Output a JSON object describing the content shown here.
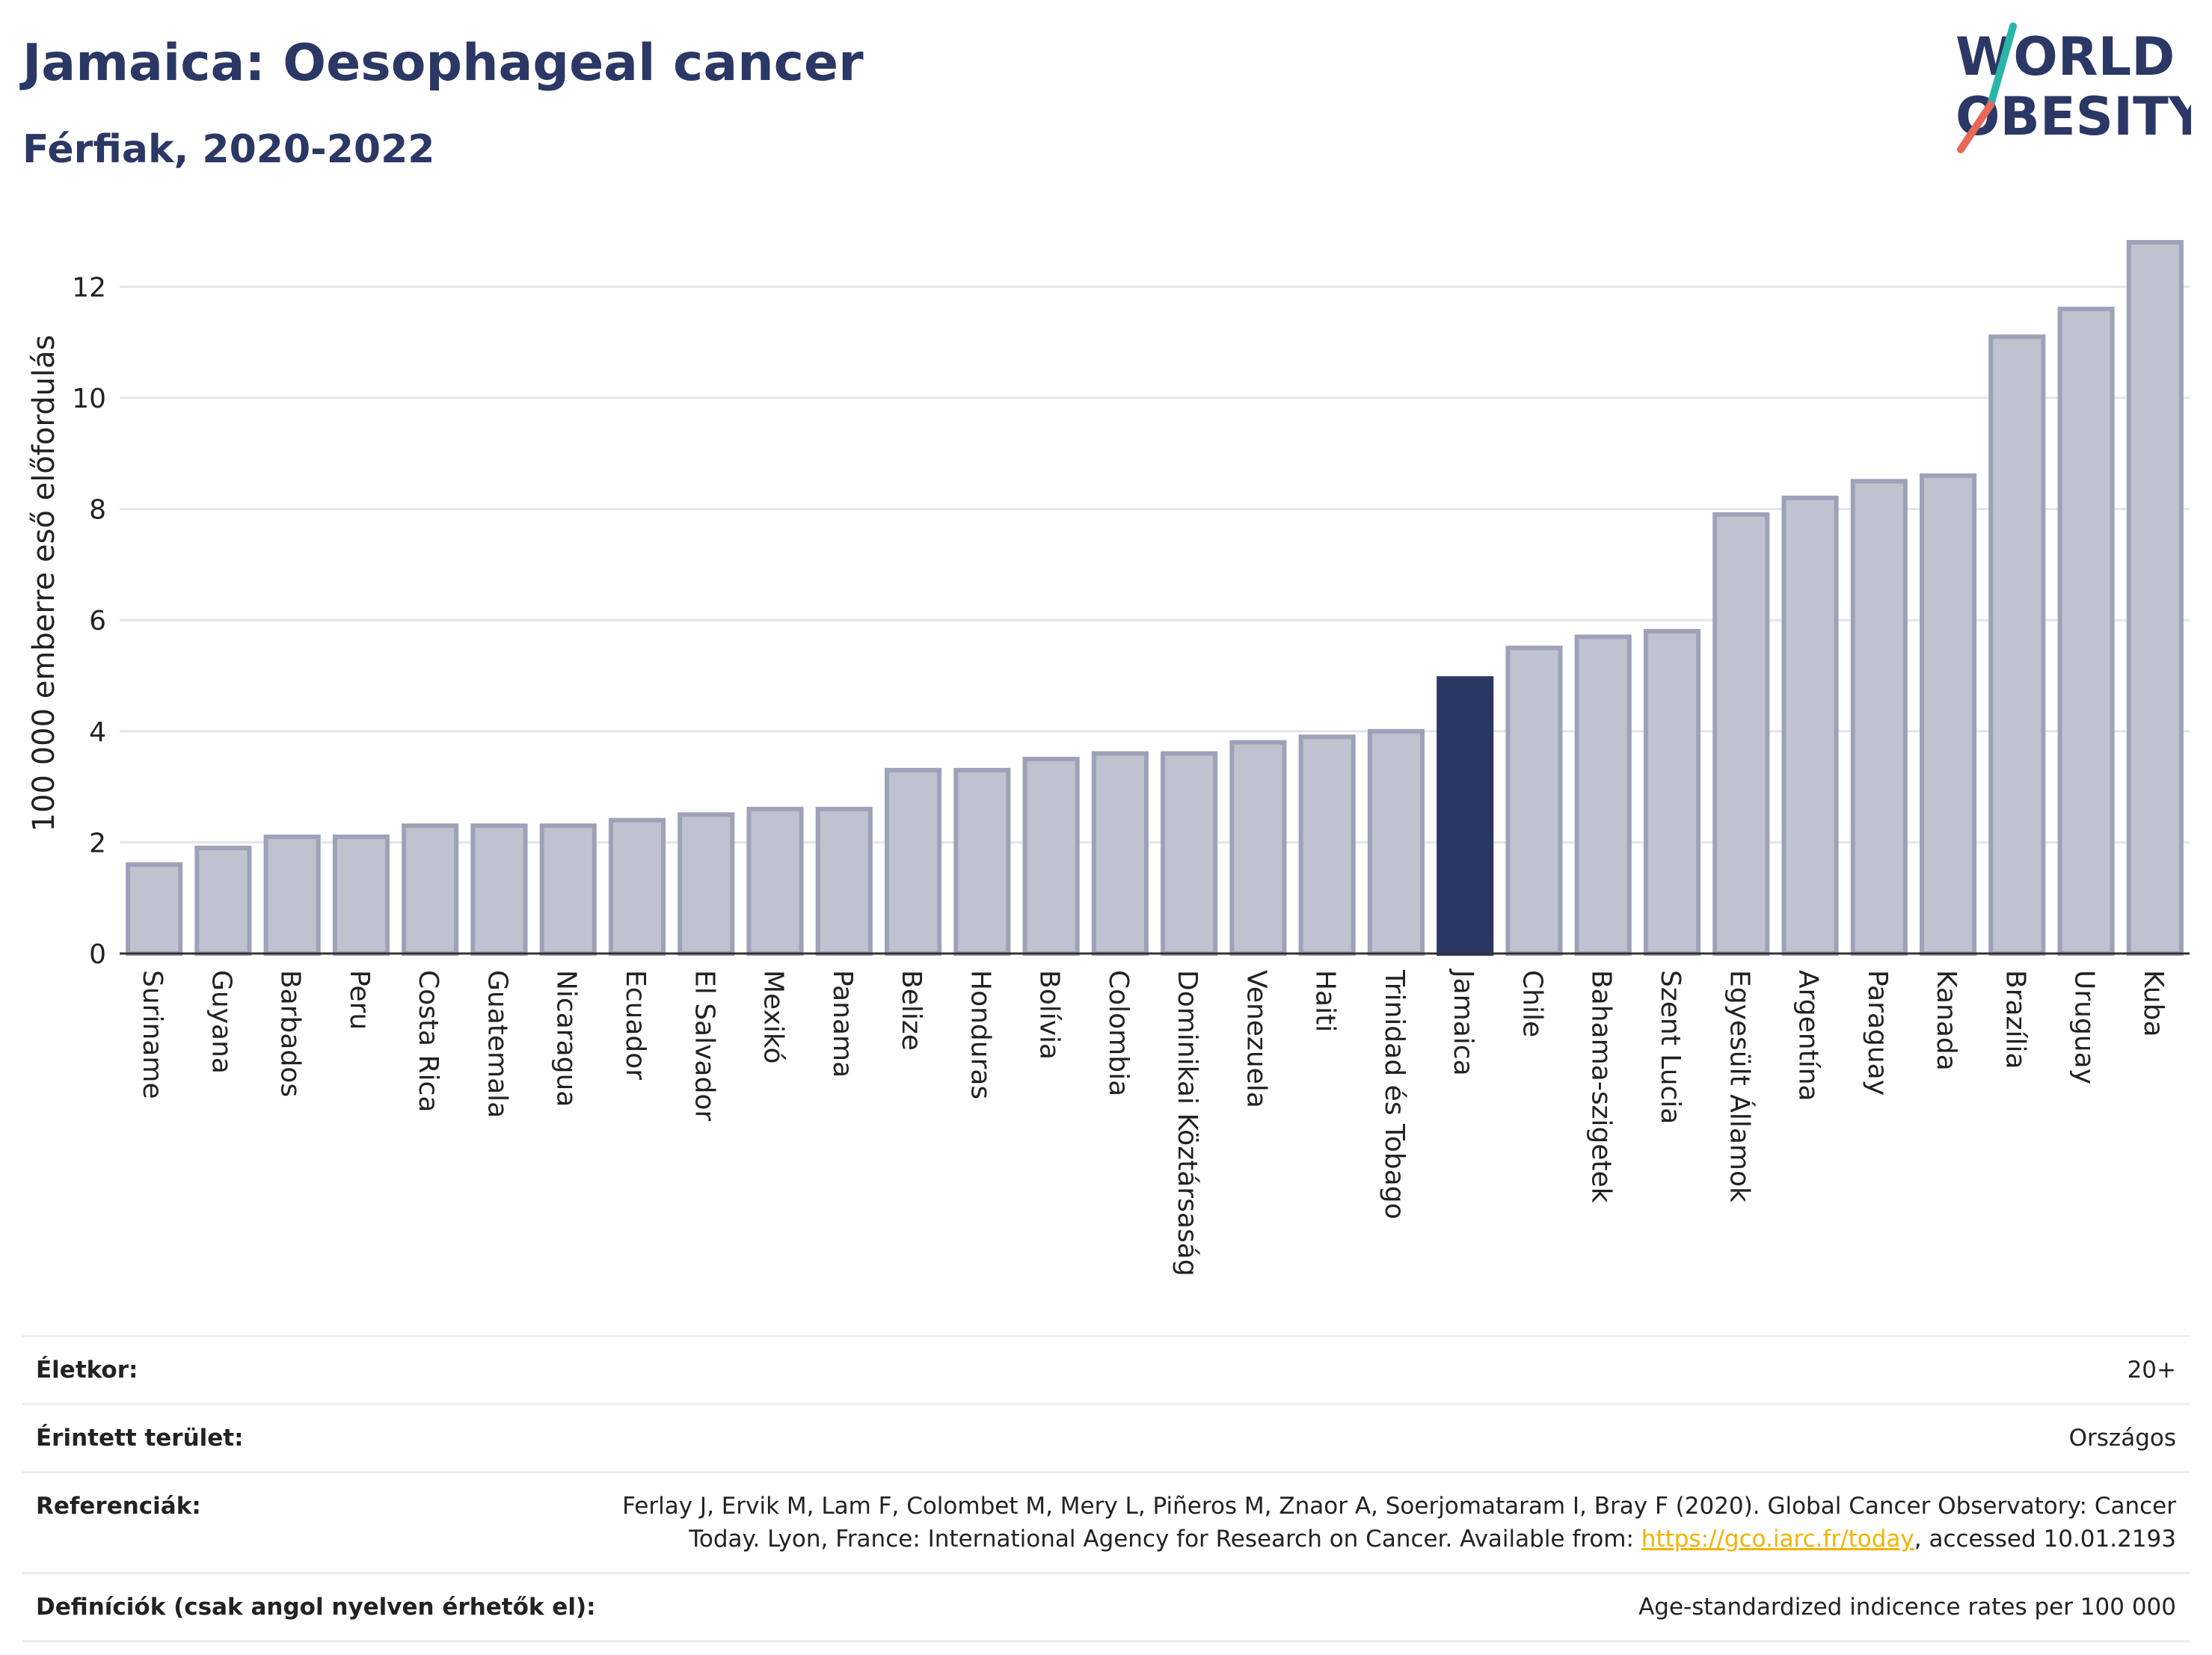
{
  "header": {
    "title": "Jamaica: Oesophageal cancer",
    "subtitle": "Férfiak, 2020-2022"
  },
  "logo": {
    "line1": "WORLD",
    "line2": "OBESITY",
    "colors": {
      "text": "#2b3765",
      "slash_top": "#2bb5a8",
      "slash_bottom": "#e8685a"
    }
  },
  "chart_data": {
    "type": "bar",
    "ylabel": "100 000 emberre eső előfordulás",
    "ylim": [
      0,
      13
    ],
    "yticks": [
      0,
      2,
      4,
      6,
      8,
      10,
      12
    ],
    "grid": true,
    "highlight": "Jamaica",
    "colors": {
      "bar": "#bfc3cf",
      "bar_border": "#9da2b8",
      "highlight": "#2b3765"
    },
    "categories": [
      "Suriname",
      "Guyana",
      "Barbados",
      "Peru",
      "Costa Rica",
      "Guatemala",
      "Nicaragua",
      "Ecuador",
      "El Salvador",
      "Mexikó",
      "Panama",
      "Belize",
      "Honduras",
      "Bolívia",
      "Colombia",
      "Dominikai Köztársaság",
      "Venezuela",
      "Haiti",
      "Trinidad és Tobago",
      "Jamaica",
      "Chile",
      "Bahama-szigetek",
      "Szent Lucia",
      "Egyesült Államok",
      "Argentína",
      "Paraguay",
      "Kanada",
      "Brazília",
      "Uruguay",
      "Kuba"
    ],
    "values": [
      1.6,
      1.9,
      2.1,
      2.1,
      2.3,
      2.3,
      2.3,
      2.4,
      2.5,
      2.6,
      2.6,
      3.3,
      3.3,
      3.5,
      3.6,
      3.6,
      3.8,
      3.9,
      4.0,
      4.95,
      5.5,
      5.7,
      5.8,
      7.9,
      8.2,
      8.5,
      8.6,
      11.1,
      11.6,
      12.8
    ]
  },
  "info": {
    "age": {
      "label": "Életkor:",
      "value": "20+"
    },
    "area": {
      "label": "Érintett terület:",
      "value": "Országos"
    },
    "references": {
      "label": "Referenciák:",
      "text1": "Ferlay J, Ervik M, Lam F, Colombet M, Mery L, Piñeros M, Znaor A, Soerjomataram I, Bray F (2020). Global Cancer Observatory: Cancer Today. Lyon, France: International Agency for Research on Cancer. Available from: ",
      "link": "https://gco.iarc.fr/today",
      "text2": ", accessed 10.01.2193"
    },
    "definitions": {
      "label": "Definíciók (csak angol nyelven érhetők el):",
      "value": "Age-standardized indicence rates per 100 000"
    }
  }
}
